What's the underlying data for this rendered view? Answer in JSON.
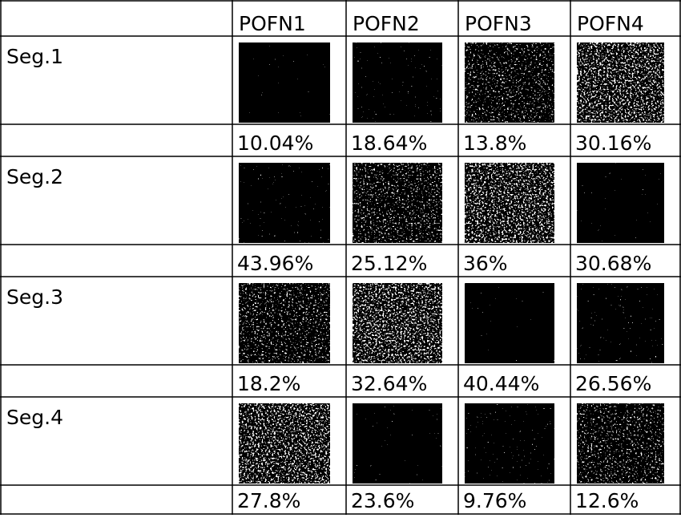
{
  "table": {
    "header": [
      "POFN1",
      "POFN2",
      "POFN3",
      "POFN4"
    ],
    "rows": [
      {
        "label": "Seg.1",
        "values": [
          "10.04%",
          "18.64%",
          "13.8%",
          "30.16%"
        ]
      },
      {
        "label": "Seg.2",
        "values": [
          "43.96%",
          "25.12%",
          "36%",
          "30.68%"
        ]
      },
      {
        "label": "Seg.3",
        "values": [
          "18.2%",
          "32.64%",
          "40.44%",
          "26.56%"
        ]
      },
      {
        "label": "Seg.4",
        "values": [
          "27.8%",
          "23.6%",
          "9.76%",
          "12.6%"
        ]
      }
    ]
  }
}
